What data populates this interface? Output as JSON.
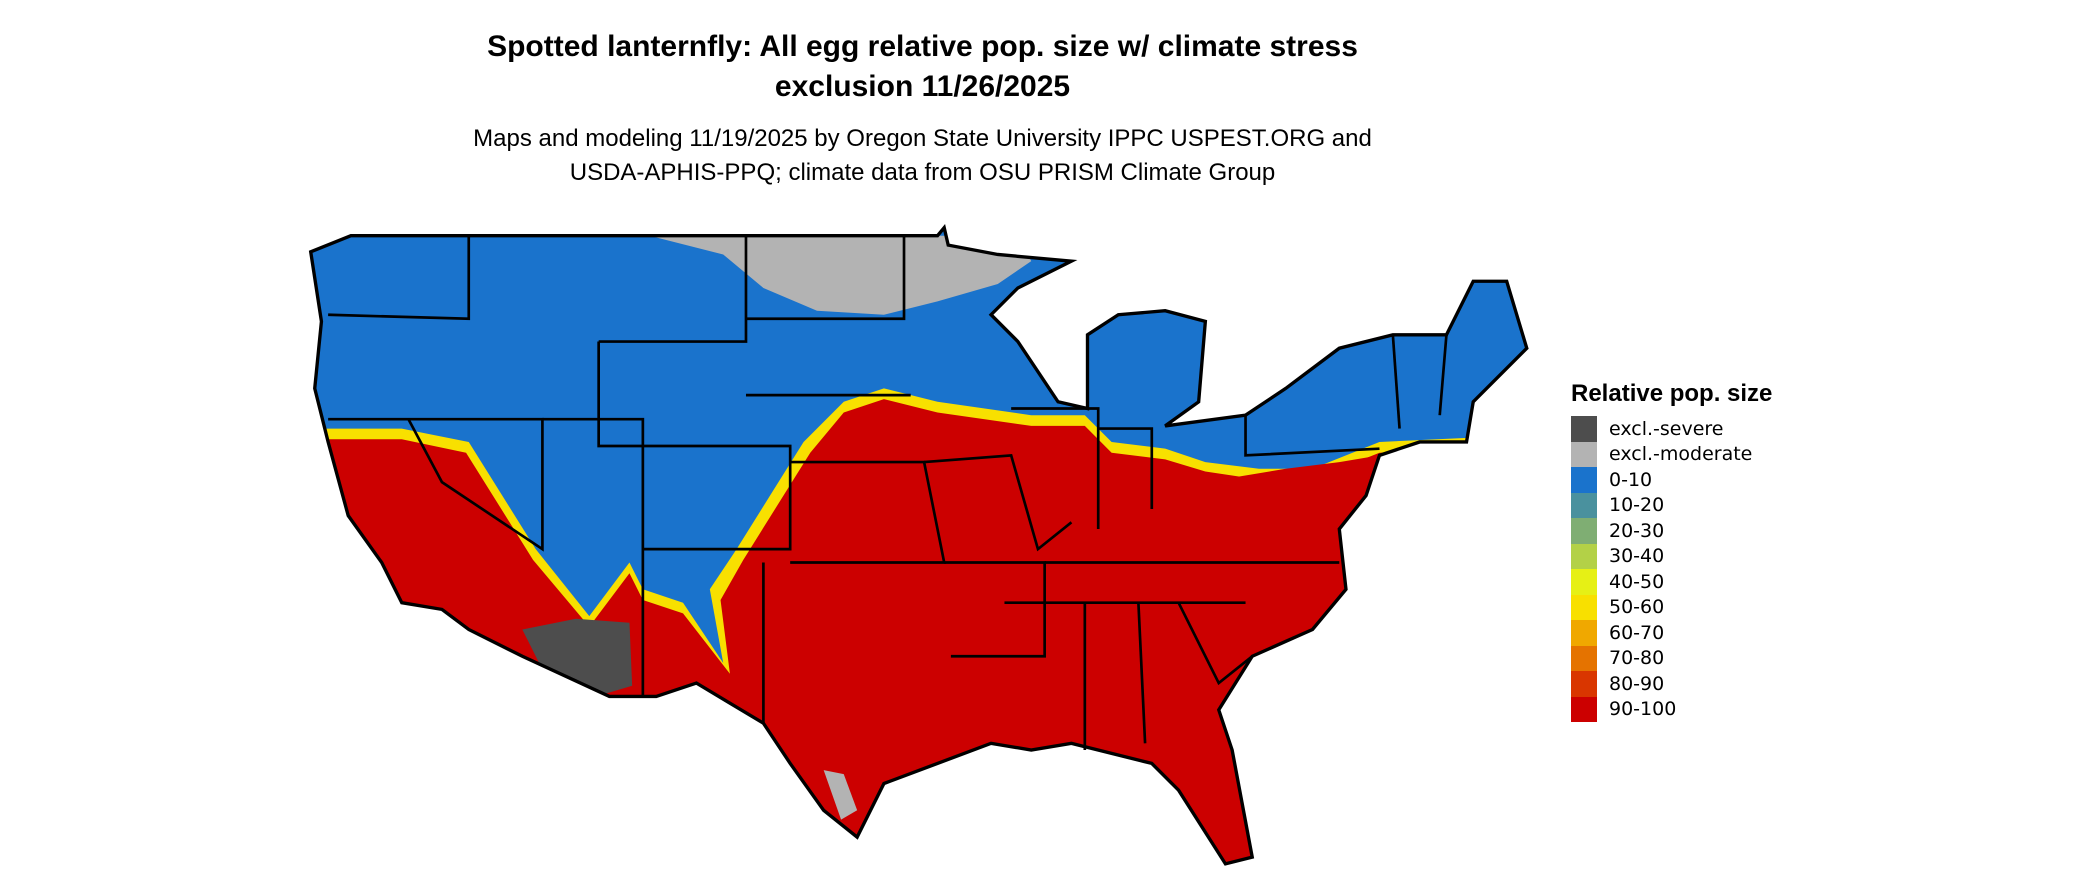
{
  "title": {
    "line1": "Spotted lanternfly: All egg relative pop. size w/ climate stress",
    "line2": "exclusion 11/26/2025"
  },
  "subtitle": {
    "line1": "Maps and modeling 11/19/2025 by Oregon State University IPPC USPEST.ORG and",
    "line2": "USDA-APHIS-PPQ; climate data from OSU PRISM Climate Group"
  },
  "legend": {
    "title": "Relative pop. size",
    "items": [
      {
        "label": "excl.-severe",
        "color": "#4d4d4d"
      },
      {
        "label": "excl.-moderate",
        "color": "#b3b3b3"
      },
      {
        "label": "0-10",
        "color": "#1a73cc"
      },
      {
        "label": "10-20",
        "color": "#4a919e"
      },
      {
        "label": "20-30",
        "color": "#7fae73"
      },
      {
        "label": "30-40",
        "color": "#b3d147"
      },
      {
        "label": "40-50",
        "color": "#e6f015"
      },
      {
        "label": "50-60",
        "color": "#f8e000"
      },
      {
        "label": "60-70",
        "color": "#f0a800"
      },
      {
        "label": "70-80",
        "color": "#e57300"
      },
      {
        "label": "80-90",
        "color": "#d93600"
      },
      {
        "label": "90-100",
        "color": "#cc0000"
      }
    ]
  }
}
